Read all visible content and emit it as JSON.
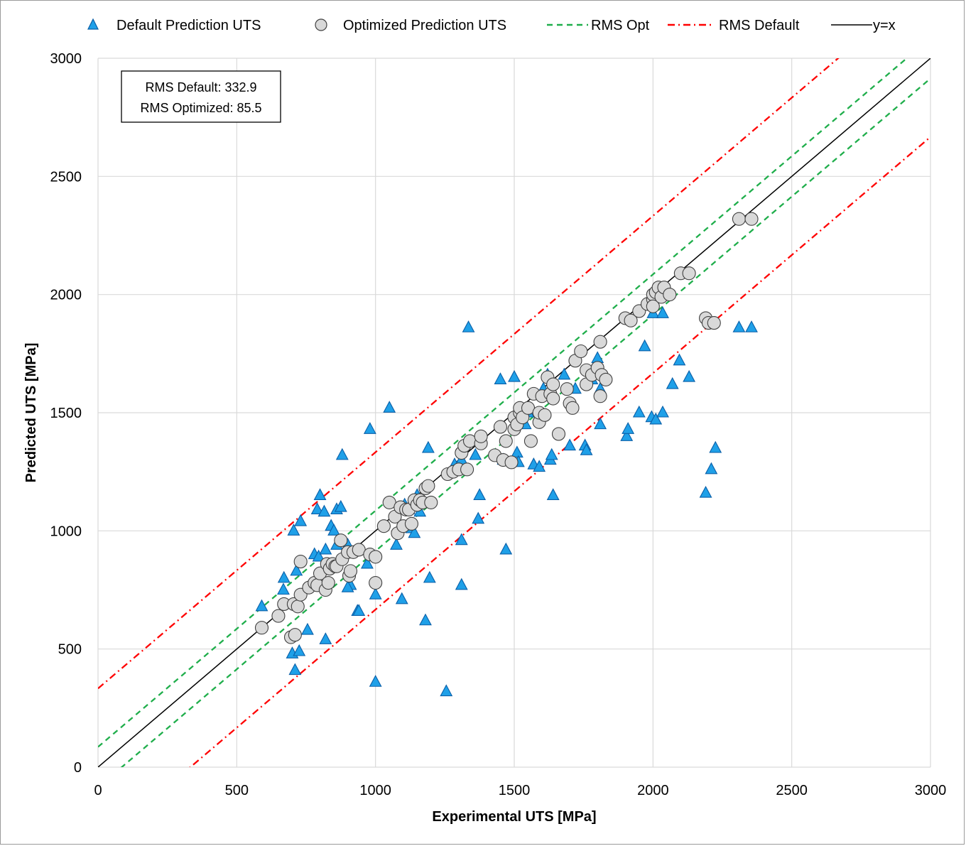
{
  "chart_data": {
    "type": "scatter",
    "xlabel": "Experimental UTS [MPa]",
    "ylabel": "Predicted UTS [MPa]",
    "xlim": [
      0,
      3000
    ],
    "ylim": [
      0,
      3000
    ],
    "x_ticks": [
      0,
      500,
      1000,
      1500,
      2000,
      2500,
      3000
    ],
    "y_ticks": [
      0,
      500,
      1000,
      1500,
      2000,
      2500,
      3000
    ],
    "grid": true,
    "legend_position": "top",
    "legend": [
      {
        "label": "Default Prediction UTS",
        "kind": "triangle"
      },
      {
        "label": "Optimized Prediction UTS",
        "kind": "circle"
      },
      {
        "label": "RMS Opt",
        "kind": "dashed"
      },
      {
        "label": "RMS Default",
        "kind": "dashdot"
      },
      {
        "label": "y=x",
        "kind": "solid"
      }
    ],
    "annotation": {
      "line1": "RMS Default: 332.9",
      "line2": "RMS Optimized: 85.5"
    },
    "rms_default": 332.9,
    "rms_optimized": 85.5,
    "colors": {
      "default_fill": "#1fa0e8",
      "default_edge": "#0a5fa8",
      "optimized_fill": "#d9d9d9",
      "optimized_edge": "#404040",
      "rms_opt_line": "#1fae4b",
      "rms_default_line": "#ff0000",
      "identity_line": "#000000",
      "grid": "#d9d9d9"
    },
    "series": [
      {
        "name": "Default Prediction UTS",
        "points": [
          [
            590,
            680
          ],
          [
            670,
            800
          ],
          [
            668,
            750
          ],
          [
            705,
            1000
          ],
          [
            730,
            1040
          ],
          [
            715,
            830
          ],
          [
            700,
            480
          ],
          [
            725,
            490
          ],
          [
            710,
            410
          ],
          [
            755,
            580
          ],
          [
            820,
            540
          ],
          [
            780,
            900
          ],
          [
            795,
            890
          ],
          [
            820,
            920
          ],
          [
            790,
            1090
          ],
          [
            800,
            1150
          ],
          [
            815,
            1080
          ],
          [
            840,
            1020
          ],
          [
            850,
            1000
          ],
          [
            860,
            1090
          ],
          [
            875,
            1100
          ],
          [
            880,
            1320
          ],
          [
            860,
            940
          ],
          [
            900,
            940
          ],
          [
            910,
            770
          ],
          [
            900,
            760
          ],
          [
            935,
            660
          ],
          [
            940,
            660
          ],
          [
            970,
            860
          ],
          [
            980,
            1430
          ],
          [
            1000,
            730
          ],
          [
            1000,
            360
          ],
          [
            1050,
            1520
          ],
          [
            1075,
            940
          ],
          [
            1095,
            710
          ],
          [
            1105,
            1110
          ],
          [
            1120,
            1090
          ],
          [
            1130,
            1010
          ],
          [
            1140,
            990
          ],
          [
            1150,
            1150
          ],
          [
            1160,
            1080
          ],
          [
            1180,
            620
          ],
          [
            1190,
            1350
          ],
          [
            1195,
            800
          ],
          [
            1255,
            320
          ],
          [
            1285,
            1280
          ],
          [
            1310,
            1300
          ],
          [
            1310,
            960
          ],
          [
            1310,
            770
          ],
          [
            1335,
            1860
          ],
          [
            1360,
            1320
          ],
          [
            1370,
            1050
          ],
          [
            1375,
            1150
          ],
          [
            1450,
            1640
          ],
          [
            1460,
            1300
          ],
          [
            1470,
            920
          ],
          [
            1500,
            1650
          ],
          [
            1510,
            1330
          ],
          [
            1515,
            1290
          ],
          [
            1525,
            1510
          ],
          [
            1540,
            1450
          ],
          [
            1550,
            1500
          ],
          [
            1570,
            1280
          ],
          [
            1590,
            1270
          ],
          [
            1605,
            1600
          ],
          [
            1620,
            1660
          ],
          [
            1630,
            1300
          ],
          [
            1635,
            1320
          ],
          [
            1640,
            1150
          ],
          [
            1680,
            1660
          ],
          [
            1700,
            1360
          ],
          [
            1720,
            1600
          ],
          [
            1755,
            1360
          ],
          [
            1760,
            1340
          ],
          [
            1780,
            1640
          ],
          [
            1800,
            1730
          ],
          [
            1810,
            1600
          ],
          [
            1810,
            1450
          ],
          [
            1905,
            1400
          ],
          [
            1910,
            1430
          ],
          [
            1950,
            1500
          ],
          [
            1970,
            1780
          ],
          [
            1995,
            1480
          ],
          [
            2010,
            1470
          ],
          [
            2000,
            1920
          ],
          [
            2035,
            1500
          ],
          [
            2035,
            1920
          ],
          [
            2070,
            1620
          ],
          [
            2095,
            1720
          ],
          [
            2130,
            1650
          ],
          [
            2190,
            1160
          ],
          [
            2210,
            1260
          ],
          [
            2225,
            1350
          ],
          [
            2310,
            1860
          ],
          [
            2355,
            1860
          ]
        ]
      },
      {
        "name": "Optimized Prediction UTS",
        "points": [
          [
            590,
            590
          ],
          [
            650,
            640
          ],
          [
            670,
            690
          ],
          [
            695,
            550
          ],
          [
            705,
            690
          ],
          [
            710,
            560
          ],
          [
            720,
            680
          ],
          [
            730,
            730
          ],
          [
            730,
            870
          ],
          [
            760,
            760
          ],
          [
            780,
            780
          ],
          [
            790,
            770
          ],
          [
            800,
            820
          ],
          [
            820,
            750
          ],
          [
            825,
            860
          ],
          [
            830,
            780
          ],
          [
            835,
            840
          ],
          [
            845,
            860
          ],
          [
            855,
            850
          ],
          [
            860,
            850
          ],
          [
            875,
            960
          ],
          [
            880,
            880
          ],
          [
            900,
            910
          ],
          [
            905,
            810
          ],
          [
            910,
            830
          ],
          [
            920,
            910
          ],
          [
            940,
            920
          ],
          [
            980,
            900
          ],
          [
            1000,
            890
          ],
          [
            1000,
            780
          ],
          [
            1030,
            1020
          ],
          [
            1050,
            1120
          ],
          [
            1070,
            1060
          ],
          [
            1080,
            990
          ],
          [
            1090,
            1100
          ],
          [
            1100,
            1020
          ],
          [
            1110,
            1090
          ],
          [
            1120,
            1090
          ],
          [
            1130,
            1030
          ],
          [
            1140,
            1130
          ],
          [
            1150,
            1110
          ],
          [
            1160,
            1130
          ],
          [
            1170,
            1120
          ],
          [
            1180,
            1180
          ],
          [
            1190,
            1190
          ],
          [
            1200,
            1120
          ],
          [
            1260,
            1240
          ],
          [
            1280,
            1250
          ],
          [
            1300,
            1260
          ],
          [
            1310,
            1330
          ],
          [
            1320,
            1360
          ],
          [
            1330,
            1260
          ],
          [
            1340,
            1380
          ],
          [
            1380,
            1370
          ],
          [
            1380,
            1400
          ],
          [
            1430,
            1320
          ],
          [
            1450,
            1440
          ],
          [
            1460,
            1300
          ],
          [
            1470,
            1380
          ],
          [
            1490,
            1290
          ],
          [
            1500,
            1430
          ],
          [
            1500,
            1480
          ],
          [
            1510,
            1450
          ],
          [
            1520,
            1500
          ],
          [
            1520,
            1520
          ],
          [
            1530,
            1480
          ],
          [
            1550,
            1520
          ],
          [
            1560,
            1380
          ],
          [
            1570,
            1580
          ],
          [
            1590,
            1460
          ],
          [
            1590,
            1500
          ],
          [
            1600,
            1570
          ],
          [
            1610,
            1490
          ],
          [
            1620,
            1650
          ],
          [
            1630,
            1580
          ],
          [
            1640,
            1620
          ],
          [
            1640,
            1560
          ],
          [
            1660,
            1410
          ],
          [
            1690,
            1600
          ],
          [
            1700,
            1540
          ],
          [
            1710,
            1520
          ],
          [
            1720,
            1720
          ],
          [
            1740,
            1760
          ],
          [
            1760,
            1680
          ],
          [
            1760,
            1620
          ],
          [
            1780,
            1660
          ],
          [
            1800,
            1690
          ],
          [
            1810,
            1800
          ],
          [
            1815,
            1660
          ],
          [
            1810,
            1570
          ],
          [
            1830,
            1640
          ],
          [
            1900,
            1900
          ],
          [
            1920,
            1890
          ],
          [
            1950,
            1930
          ],
          [
            1980,
            1960
          ],
          [
            2000,
            1980
          ],
          [
            2000,
            2000
          ],
          [
            2000,
            1950
          ],
          [
            2010,
            2010
          ],
          [
            2020,
            2030
          ],
          [
            2030,
            1990
          ],
          [
            2040,
            2030
          ],
          [
            2060,
            2000
          ],
          [
            2100,
            2090
          ],
          [
            2130,
            2090
          ],
          [
            2190,
            1900
          ],
          [
            2200,
            1880
          ],
          [
            2220,
            1880
          ],
          [
            2310,
            2320
          ],
          [
            2355,
            2320
          ]
        ]
      }
    ]
  }
}
